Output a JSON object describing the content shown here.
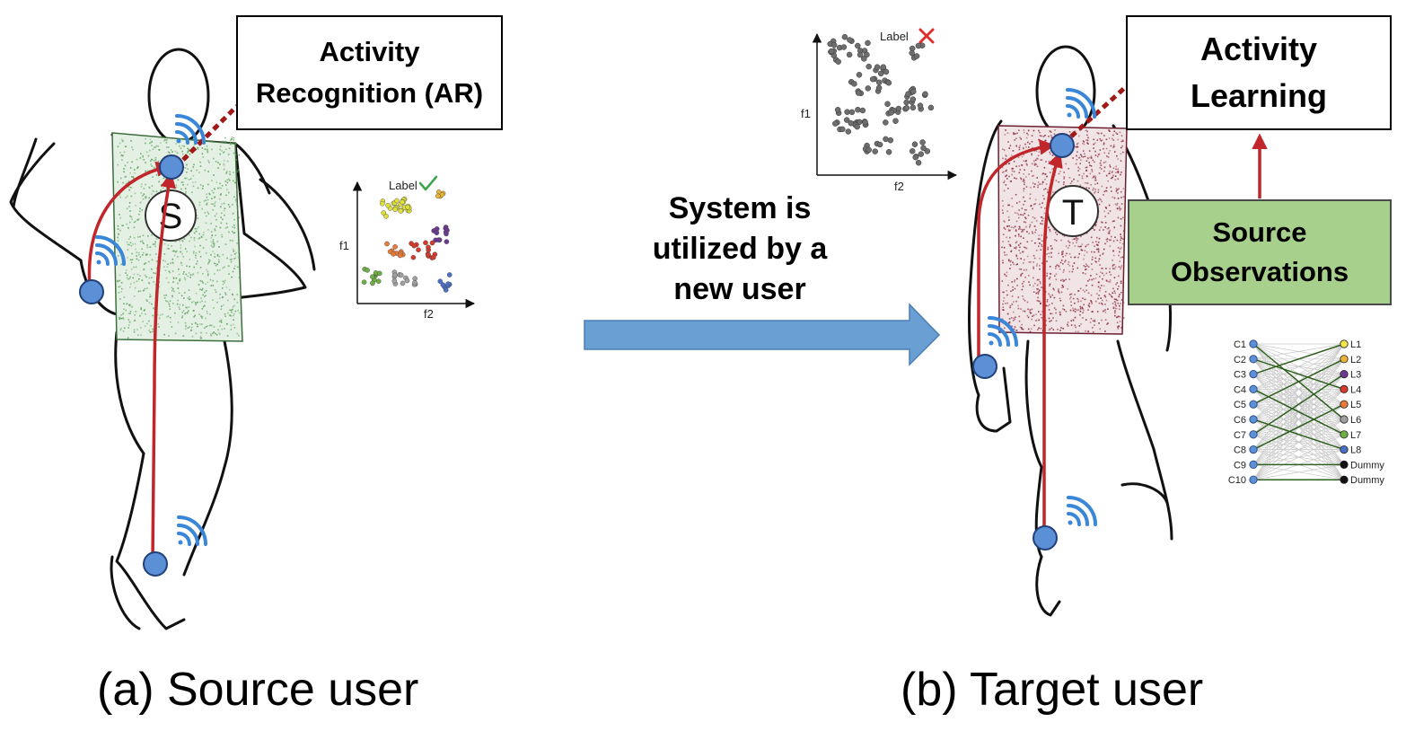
{
  "source": {
    "box_title": "Activity\nRecognition (AR)",
    "figure_letter": "S",
    "plot": {
      "label_text": "Label",
      "x_axis": "f2",
      "y_axis": "f1"
    },
    "caption": "(a) Source user",
    "body_texture_color": "#5fa35f"
  },
  "middle": {
    "text": "System is\nutilized by a\nnew user",
    "arrow_color": "#6a9fd4"
  },
  "target": {
    "box_title": "Activity\nLearning",
    "figure_letter": "T",
    "plot": {
      "label_text": "Label",
      "x_axis": "f2",
      "y_axis": "f1"
    },
    "caption": "(b) Target user",
    "body_texture_color": "#8b2a3a",
    "observations_label": "Source\nObservations",
    "observations_color": "#a8d08d"
  },
  "mapping": {
    "left_nodes": [
      "C1",
      "C2",
      "C3",
      "C4",
      "C5",
      "C6",
      "C7",
      "C8",
      "C9",
      "C10"
    ],
    "right_nodes": [
      {
        "label": "L1",
        "color": "#f2e64a"
      },
      {
        "label": "L2",
        "color": "#e8b43a"
      },
      {
        "label": "L3",
        "color": "#6b3a8f"
      },
      {
        "label": "L4",
        "color": "#d63a2a"
      },
      {
        "label": "L5",
        "color": "#e87a3a"
      },
      {
        "label": "L6",
        "color": "#a0a0a0"
      },
      {
        "label": "L7",
        "color": "#6fae45"
      },
      {
        "label": "L8",
        "color": "#4a6fc4"
      },
      {
        "label": "Dummy",
        "color": "#111111"
      },
      {
        "label": "Dummy",
        "color": "#111111"
      }
    ],
    "matched_pairs": [
      [
        0,
        5
      ],
      [
        1,
        3
      ],
      [
        2,
        0
      ],
      [
        3,
        6
      ],
      [
        4,
        1
      ],
      [
        5,
        7
      ],
      [
        6,
        2
      ],
      [
        7,
        4
      ],
      [
        8,
        8
      ],
      [
        9,
        9
      ]
    ]
  },
  "colors": {
    "sensor": "#5b8fd6",
    "wireless": "#3a86d8",
    "signal_path": "#c0262a",
    "cluster_palette": [
      "#dfe03a",
      "#e8b43a",
      "#e87a3a",
      "#d63a2a",
      "#6b3a8f",
      "#6fae45",
      "#a0a0a0",
      "#4a6fc4"
    ],
    "unlabeled_point": "#6e6e6e",
    "check": "#3aa64a",
    "cross": "#e0302a"
  }
}
